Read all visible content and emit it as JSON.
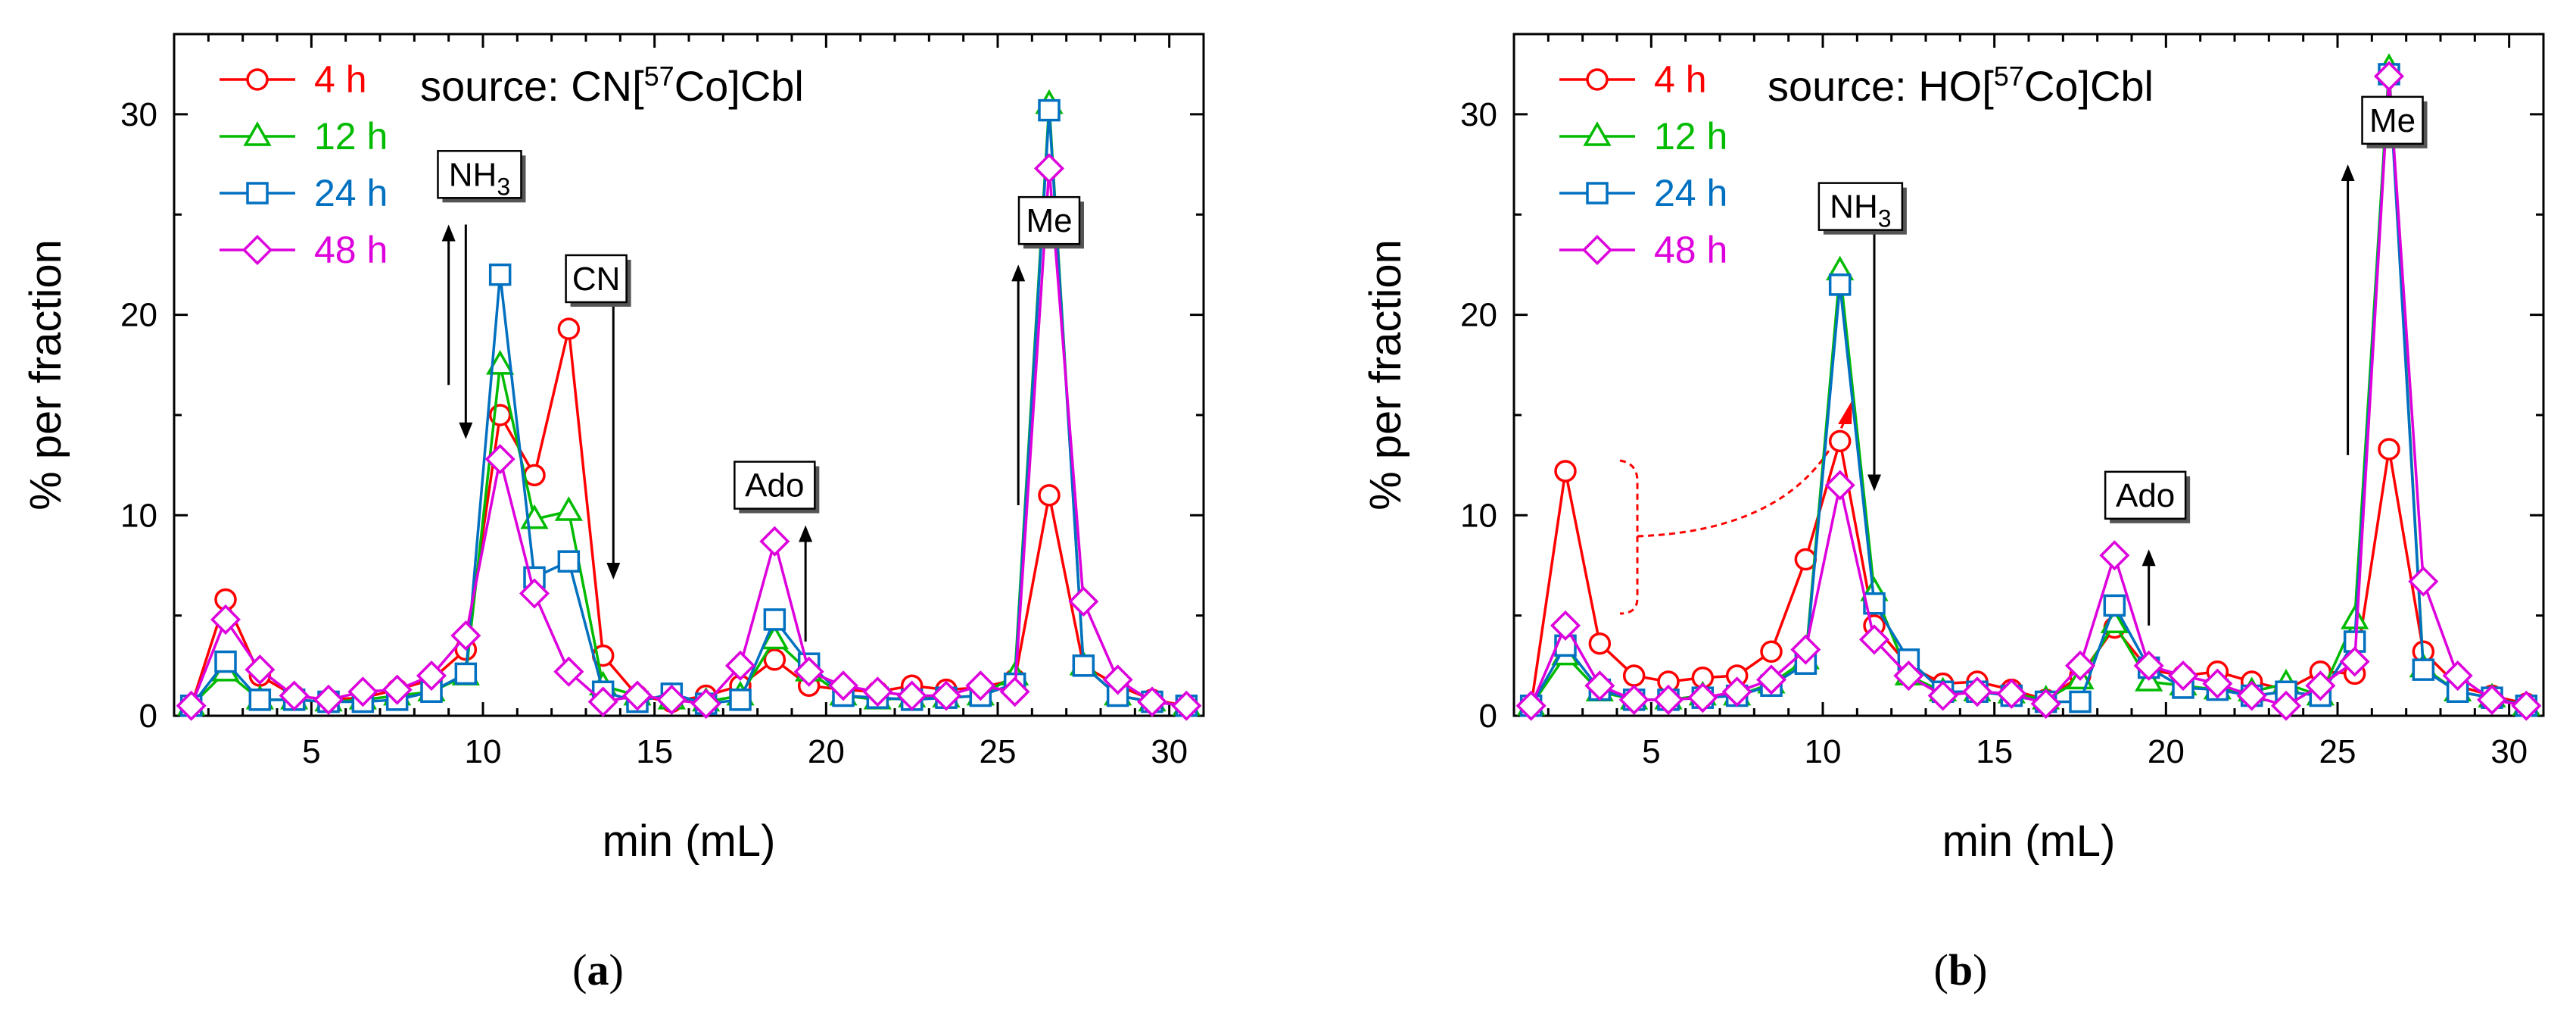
{
  "chart_data": [
    {
      "type": "line",
      "panel_label": "a",
      "source": {
        "prefix": "source: CN[",
        "isotope": "57",
        "suffix": "Co]Cbl"
      },
      "xlabel": "min (mL)",
      "ylabel": "% per fraction",
      "xlim": [
        1,
        31
      ],
      "ylim": [
        0,
        34
      ],
      "xticks": [
        5,
        10,
        15,
        20,
        25,
        30
      ],
      "yticks": [
        0,
        10,
        20,
        30
      ],
      "x": [
        1.5,
        2.5,
        3.5,
        4.5,
        5.5,
        6.5,
        7.5,
        8.5,
        9.5,
        10.5,
        11.5,
        12.5,
        13.5,
        14.5,
        15.5,
        16.5,
        17.5,
        18.5,
        19.5,
        20.5,
        21.5,
        22.5,
        23.5,
        24.5,
        25.5,
        26.5,
        27.5,
        28.5,
        29.5,
        30.5
      ],
      "series": [
        {
          "name": "4 h",
          "marker": "circle",
          "color": "#ff0000",
          "values": [
            0.5,
            5.8,
            2.0,
            1.0,
            0.8,
            0.9,
            1.3,
            1.8,
            3.3,
            15.0,
            12.0,
            19.3,
            3.0,
            1.0,
            0.7,
            1.0,
            1.5,
            2.8,
            1.5,
            1.3,
            1.2,
            1.5,
            1.3,
            1.4,
            1.8,
            11.0,
            2.5,
            1.5,
            0.8,
            0.5
          ]
        },
        {
          "name": "12 h",
          "marker": "triangle",
          "color": "#00bb00",
          "values": [
            0.5,
            2.2,
            0.8,
            0.8,
            0.7,
            0.8,
            1.0,
            1.2,
            2.0,
            17.5,
            9.8,
            10.2,
            1.5,
            1.0,
            0.8,
            0.7,
            1.0,
            3.8,
            2.2,
            1.0,
            0.8,
            0.9,
            0.9,
            1.0,
            2.0,
            30.5,
            2.5,
            1.0,
            0.7,
            0.5
          ]
        },
        {
          "name": "24 h",
          "marker": "square",
          "color": "#0070c0",
          "values": [
            0.5,
            2.7,
            0.8,
            0.8,
            0.7,
            0.7,
            0.8,
            1.2,
            2.1,
            22.0,
            6.9,
            7.7,
            1.2,
            0.7,
            1.1,
            0.6,
            0.8,
            4.8,
            2.6,
            1.0,
            0.9,
            0.8,
            0.9,
            1.0,
            1.6,
            30.2,
            2.5,
            1.0,
            0.7,
            0.5
          ]
        },
        {
          "name": "48 h",
          "marker": "diamond",
          "color": "#dd00dd",
          "values": [
            0.5,
            4.8,
            2.3,
            1.0,
            0.8,
            1.2,
            1.3,
            2.0,
            4.0,
            12.8,
            6.1,
            2.2,
            0.7,
            1.0,
            0.8,
            0.6,
            2.5,
            8.7,
            2.2,
            1.5,
            1.2,
            1.0,
            1.0,
            1.5,
            1.2,
            27.3,
            5.7,
            1.8,
            0.7,
            0.5
          ]
        }
      ],
      "annotations": [
        {
          "label": "NH",
          "sub": "3",
          "x": 9.9,
          "y": 27.0
        },
        {
          "label": "CN",
          "x": 13.3,
          "y": 21.8
        },
        {
          "label": "Ado",
          "x": 18.5,
          "y": 11.5
        },
        {
          "label": "Me",
          "x": 26.5,
          "y": 24.7
        }
      ],
      "arrows": [
        {
          "x": 9.0,
          "from": 16.5,
          "to": 24.5
        },
        {
          "x": 9.5,
          "from": 24.5,
          "to": 13.8
        },
        {
          "x": 13.8,
          "from": 21.0,
          "to": 6.8
        },
        {
          "x": 19.4,
          "from": 3.7,
          "to": 9.5
        },
        {
          "x": 25.6,
          "from": 10.5,
          "to": 22.5
        }
      ]
    },
    {
      "type": "line",
      "panel_label": "b",
      "source": {
        "prefix": "source: HO[",
        "isotope": "57",
        "suffix": "Co]Cbl"
      },
      "xlabel": "min (mL)",
      "ylabel": "% per fraction",
      "xlim": [
        1,
        31
      ],
      "ylim": [
        0,
        34
      ],
      "xticks": [
        5,
        10,
        15,
        20,
        25,
        30
      ],
      "yticks": [
        0,
        10,
        20,
        30
      ],
      "x": [
        1.5,
        2.5,
        3.5,
        4.5,
        5.5,
        6.5,
        7.5,
        8.5,
        9.5,
        10.5,
        11.5,
        12.5,
        13.5,
        14.5,
        15.5,
        16.5,
        17.5,
        18.5,
        19.5,
        20.5,
        21.5,
        22.5,
        23.5,
        24.5,
        25.5,
        26.5,
        27.5,
        28.5,
        29.5,
        30.5
      ],
      "series": [
        {
          "name": "4 h",
          "marker": "circle",
          "color": "#ff0000",
          "values": [
            0.5,
            12.2,
            3.6,
            2.0,
            1.7,
            1.9,
            2.0,
            3.2,
            7.8,
            13.7,
            4.5,
            2.5,
            1.6,
            1.7,
            1.3,
            0.8,
            2.0,
            4.4,
            2.3,
            2.0,
            2.2,
            1.7,
            1.3,
            2.2,
            2.1,
            13.3,
            3.2,
            1.5,
            1.0,
            0.6
          ]
        },
        {
          "name": "12 h",
          "marker": "triangle",
          "color": "#00bb00",
          "values": [
            0.5,
            3.0,
            1.2,
            0.8,
            0.8,
            1.0,
            1.0,
            1.6,
            2.8,
            22.2,
            6.2,
            2.0,
            1.2,
            1.2,
            1.1,
            0.8,
            1.8,
            4.6,
            1.7,
            1.5,
            1.3,
            1.2,
            1.6,
            1.0,
            4.8,
            32.3,
            2.4,
            1.2,
            0.9,
            0.5
          ]
        },
        {
          "name": "24 h",
          "marker": "square",
          "color": "#0070c0",
          "values": [
            0.5,
            3.5,
            1.3,
            0.8,
            0.8,
            0.9,
            1.0,
            1.5,
            2.6,
            21.5,
            5.6,
            2.8,
            1.2,
            1.2,
            1.0,
            0.7,
            0.7,
            5.5,
            2.4,
            1.4,
            1.3,
            1.0,
            1.2,
            1.0,
            3.7,
            32.0,
            2.3,
            1.2,
            0.9,
            0.5
          ]
        },
        {
          "name": "48 h",
          "marker": "diamond",
          "color": "#dd00dd",
          "values": [
            0.5,
            4.5,
            1.5,
            0.8,
            0.8,
            0.9,
            1.2,
            1.8,
            3.3,
            11.5,
            3.8,
            2.0,
            1.0,
            1.2,
            1.1,
            0.6,
            2.5,
            8.0,
            2.5,
            2.0,
            1.6,
            1.0,
            0.5,
            1.5,
            2.7,
            31.9,
            6.7,
            2.0,
            0.8,
            0.5
          ]
        }
      ],
      "annotations": [
        {
          "label": "NH",
          "sub": "3",
          "x": 11.1,
          "y": 25.4
        },
        {
          "label": "Ado",
          "x": 19.4,
          "y": 11.0
        },
        {
          "label": "Me",
          "x": 26.6,
          "y": 29.7
        }
      ],
      "arrows": [
        {
          "x": 11.5,
          "from": 25.0,
          "to": 11.2
        },
        {
          "x": 19.5,
          "from": 4.5,
          "to": 8.3
        },
        {
          "x": 25.3,
          "from": 13.0,
          "to": 27.5
        }
      ]
    }
  ]
}
